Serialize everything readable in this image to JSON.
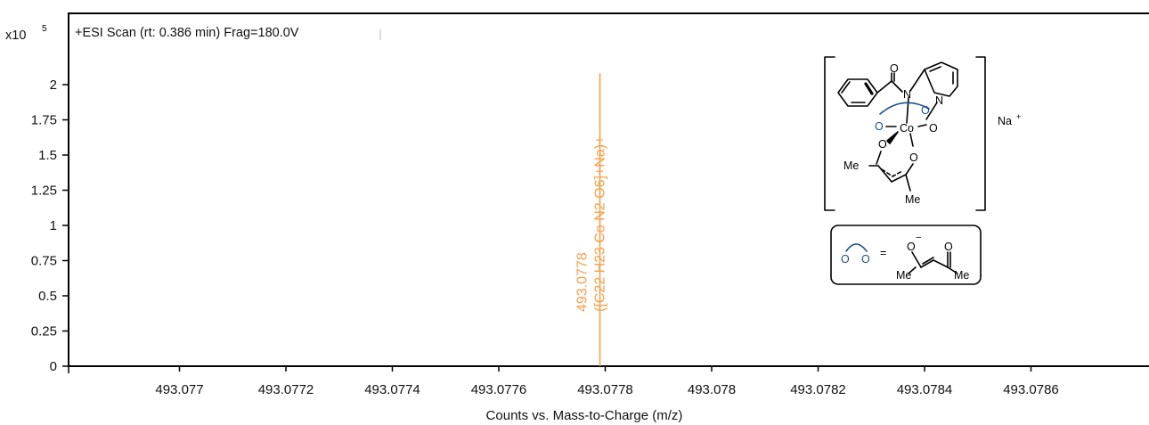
{
  "header": {
    "scale_prefix": "x10",
    "scale_exponent": "5",
    "scan_info": "+ESI Scan (rt: 0.386 min) Frag=180.0V"
  },
  "chart_data": {
    "type": "bar",
    "xlabel": "Counts vs. Mass-to-Charge (m/z)",
    "ylabel": "",
    "x_ticks": [
      493.077,
      493.0772,
      493.0774,
      493.0776,
      493.0778,
      493.078,
      493.0782,
      493.0784,
      493.0786
    ],
    "x_tick_labels": [
      "493.077",
      "493.0772",
      "493.0774",
      "493.0776",
      "493.0778",
      "493.078",
      "493.0782",
      "493.0784",
      "493.0786"
    ],
    "y_ticks": [
      0,
      0.25,
      0.5,
      0.75,
      1,
      1.25,
      1.5,
      1.75,
      2
    ],
    "y_tick_labels": [
      "0",
      "0.25",
      "0.5",
      "0.75",
      "1",
      "1.25",
      "1.5",
      "1.75",
      "2"
    ],
    "xlim": [
      493.0769,
      493.0788
    ],
    "ylim": [
      0,
      2.4
    ],
    "grid": false,
    "peaks": [
      {
        "x": 493.07779,
        "y": 2.08,
        "color": "#f5a04a",
        "mass_label": "493.0778",
        "formula_label": "([C22 H23 Co N2 O6]+Na)+"
      }
    ]
  },
  "structure": {
    "counter_ion": "Na",
    "counter_ion_charge": "+",
    "metal": "Co",
    "ring_n": "N",
    "amide_n": "N",
    "oxygen": "O",
    "methyl_top": "Me",
    "methyl_bottom": "Me",
    "legend_equals": "=",
    "legend_minus": "−",
    "legend_me_left": "Me",
    "legend_me_right": "Me",
    "ligand_color": "#1a4f8f"
  }
}
